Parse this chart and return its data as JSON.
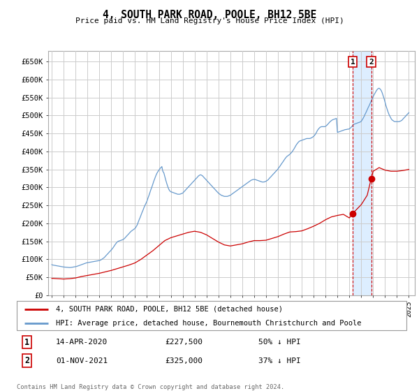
{
  "title": "4, SOUTH PARK ROAD, POOLE, BH12 5BE",
  "subtitle": "Price paid vs. HM Land Registry's House Price Index (HPI)",
  "ylim": [
    0,
    680000
  ],
  "yticks": [
    0,
    50000,
    100000,
    150000,
    200000,
    250000,
    300000,
    350000,
    400000,
    450000,
    500000,
    550000,
    600000,
    650000
  ],
  "ytick_labels": [
    "£0",
    "£50K",
    "£100K",
    "£150K",
    "£200K",
    "£250K",
    "£300K",
    "£350K",
    "£400K",
    "£450K",
    "£500K",
    "£550K",
    "£600K",
    "£650K"
  ],
  "xlim_start": 1994.7,
  "xlim_end": 2025.5,
  "red_line_label": "4, SOUTH PARK ROAD, POOLE, BH12 5BE (detached house)",
  "blue_line_label": "HPI: Average price, detached house, Bournemouth Christchurch and Poole",
  "transaction1": {
    "label": "1",
    "date": "14-APR-2020",
    "price": "£227,500",
    "hpi_rel": "50% ↓ HPI",
    "x": 2020.29
  },
  "transaction2": {
    "label": "2",
    "date": "01-NOV-2021",
    "price": "£325,000",
    "hpi_rel": "37% ↓ HPI",
    "x": 2021.84
  },
  "footer": "Contains HM Land Registry data © Crown copyright and database right 2024.\nThis data is licensed under the Open Government Licence v3.0.",
  "red_color": "#cc0000",
  "blue_color": "#6699cc",
  "grid_color": "#cccccc",
  "span_color": "#ddeeff",
  "dot_color": "#cc0000",
  "hpi_x": [
    1995.0,
    1995.08,
    1995.17,
    1995.25,
    1995.33,
    1995.42,
    1995.5,
    1995.58,
    1995.67,
    1995.75,
    1995.83,
    1995.92,
    1996.0,
    1996.08,
    1996.17,
    1996.25,
    1996.33,
    1996.42,
    1996.5,
    1996.58,
    1996.67,
    1996.75,
    1996.83,
    1996.92,
    1997.0,
    1997.08,
    1997.17,
    1997.25,
    1997.33,
    1997.42,
    1997.5,
    1997.58,
    1997.67,
    1997.75,
    1997.83,
    1997.92,
    1998.0,
    1998.08,
    1998.17,
    1998.25,
    1998.33,
    1998.42,
    1998.5,
    1998.58,
    1998.67,
    1998.75,
    1998.83,
    1998.92,
    1999.0,
    1999.08,
    1999.17,
    1999.25,
    1999.33,
    1999.42,
    1999.5,
    1999.58,
    1999.67,
    1999.75,
    1999.83,
    1999.92,
    2000.0,
    2000.08,
    2000.17,
    2000.25,
    2000.33,
    2000.42,
    2000.5,
    2000.58,
    2000.67,
    2000.75,
    2000.83,
    2000.92,
    2001.0,
    2001.08,
    2001.17,
    2001.25,
    2001.33,
    2001.42,
    2001.5,
    2001.58,
    2001.67,
    2001.75,
    2001.83,
    2001.92,
    2002.0,
    2002.08,
    2002.17,
    2002.25,
    2002.33,
    2002.42,
    2002.5,
    2002.58,
    2002.67,
    2002.75,
    2002.83,
    2002.92,
    2003.0,
    2003.08,
    2003.17,
    2003.25,
    2003.33,
    2003.42,
    2003.5,
    2003.58,
    2003.67,
    2003.75,
    2003.83,
    2003.92,
    2004.0,
    2004.08,
    2004.17,
    2004.25,
    2004.33,
    2004.42,
    2004.5,
    2004.58,
    2004.67,
    2004.75,
    2004.83,
    2004.92,
    2005.0,
    2005.08,
    2005.17,
    2005.25,
    2005.33,
    2005.42,
    2005.5,
    2005.58,
    2005.67,
    2005.75,
    2005.83,
    2005.92,
    2006.0,
    2006.08,
    2006.17,
    2006.25,
    2006.33,
    2006.42,
    2006.5,
    2006.58,
    2006.67,
    2006.75,
    2006.83,
    2006.92,
    2007.0,
    2007.08,
    2007.17,
    2007.25,
    2007.33,
    2007.42,
    2007.5,
    2007.58,
    2007.67,
    2007.75,
    2007.83,
    2007.92,
    2008.0,
    2008.08,
    2008.17,
    2008.25,
    2008.33,
    2008.42,
    2008.5,
    2008.58,
    2008.67,
    2008.75,
    2008.83,
    2008.92,
    2009.0,
    2009.08,
    2009.17,
    2009.25,
    2009.33,
    2009.42,
    2009.5,
    2009.58,
    2009.67,
    2009.75,
    2009.83,
    2009.92,
    2010.0,
    2010.08,
    2010.17,
    2010.25,
    2010.33,
    2010.42,
    2010.5,
    2010.58,
    2010.67,
    2010.75,
    2010.83,
    2010.92,
    2011.0,
    2011.08,
    2011.17,
    2011.25,
    2011.33,
    2011.42,
    2011.5,
    2011.58,
    2011.67,
    2011.75,
    2011.83,
    2011.92,
    2012.0,
    2012.08,
    2012.17,
    2012.25,
    2012.33,
    2012.42,
    2012.5,
    2012.58,
    2012.67,
    2012.75,
    2012.83,
    2012.92,
    2013.0,
    2013.08,
    2013.17,
    2013.25,
    2013.33,
    2013.42,
    2013.5,
    2013.58,
    2013.67,
    2013.75,
    2013.83,
    2013.92,
    2014.0,
    2014.08,
    2014.17,
    2014.25,
    2014.33,
    2014.42,
    2014.5,
    2014.58,
    2014.67,
    2014.75,
    2014.83,
    2014.92,
    2015.0,
    2015.08,
    2015.17,
    2015.25,
    2015.33,
    2015.42,
    2015.5,
    2015.58,
    2015.67,
    2015.75,
    2015.83,
    2015.92,
    2016.0,
    2016.08,
    2016.17,
    2016.25,
    2016.33,
    2016.42,
    2016.5,
    2016.58,
    2016.67,
    2016.75,
    2016.83,
    2016.92,
    2017.0,
    2017.08,
    2017.17,
    2017.25,
    2017.33,
    2017.42,
    2017.5,
    2017.58,
    2017.67,
    2017.75,
    2017.83,
    2017.92,
    2018.0,
    2018.08,
    2018.17,
    2018.25,
    2018.33,
    2018.42,
    2018.5,
    2018.58,
    2018.67,
    2018.75,
    2018.83,
    2018.92,
    2019.0,
    2019.08,
    2019.17,
    2019.25,
    2019.33,
    2019.42,
    2019.5,
    2019.58,
    2019.67,
    2019.75,
    2019.83,
    2019.92,
    2020.0,
    2020.08,
    2020.17,
    2020.25,
    2020.33,
    2020.42,
    2020.5,
    2020.58,
    2020.67,
    2020.75,
    2020.83,
    2020.92,
    2021.0,
    2021.08,
    2021.17,
    2021.25,
    2021.33,
    2021.42,
    2021.5,
    2021.58,
    2021.67,
    2021.75,
    2021.83,
    2021.92,
    2022.0,
    2022.08,
    2022.17,
    2022.25,
    2022.33,
    2022.42,
    2022.5,
    2022.58,
    2022.67,
    2022.75,
    2022.83,
    2022.92,
    2023.0,
    2023.08,
    2023.17,
    2023.25,
    2023.33,
    2023.42,
    2023.5,
    2023.58,
    2023.67,
    2023.75,
    2023.83,
    2023.92,
    2024.0,
    2024.08,
    2024.17,
    2024.25,
    2024.33,
    2024.42,
    2024.5,
    2024.58,
    2024.67,
    2024.75,
    2024.83,
    2024.92,
    2025.0
  ],
  "hpi_y": [
    85000,
    84000,
    83500,
    83000,
    82500,
    82000,
    81500,
    81000,
    80500,
    80000,
    79500,
    79000,
    78500,
    78200,
    78000,
    77800,
    77500,
    77200,
    77000,
    77200,
    77500,
    78000,
    78500,
    79000,
    79500,
    80000,
    81000,
    82000,
    83000,
    84000,
    85000,
    86000,
    87000,
    88000,
    89000,
    90000,
    90500,
    91000,
    91500,
    92000,
    92500,
    93000,
    93500,
    94000,
    94500,
    95000,
    95500,
    96000,
    96500,
    97500,
    99000,
    101000,
    103000,
    105000,
    108000,
    111000,
    114000,
    117000,
    120000,
    123000,
    126000,
    129000,
    133000,
    137000,
    141000,
    145000,
    148000,
    150000,
    151000,
    152000,
    153000,
    154000,
    155000,
    157000,
    160000,
    163000,
    166000,
    169000,
    172000,
    175000,
    178000,
    180000,
    182000,
    184000,
    186000,
    190000,
    195000,
    202000,
    209000,
    216000,
    223000,
    230000,
    237000,
    244000,
    250000,
    256000,
    262000,
    270000,
    278000,
    286000,
    294000,
    302000,
    310000,
    318000,
    326000,
    333000,
    339000,
    344000,
    348000,
    352000,
    355000,
    358000,
    345000,
    340000,
    330000,
    320000,
    310000,
    302000,
    295000,
    290000,
    288000,
    287000,
    286000,
    285000,
    284000,
    283000,
    282000,
    281000,
    281000,
    281000,
    282000,
    283000,
    284000,
    287000,
    290000,
    293000,
    296000,
    299000,
    302000,
    305000,
    308000,
    311000,
    314000,
    317000,
    320000,
    323000,
    326000,
    329000,
    332000,
    334000,
    335000,
    334000,
    332000,
    329000,
    326000,
    323000,
    320000,
    317000,
    314000,
    311000,
    308000,
    305000,
    302000,
    299000,
    296000,
    293000,
    290000,
    287000,
    284000,
    282000,
    280000,
    278000,
    277000,
    276000,
    275000,
    275000,
    275000,
    275000,
    276000,
    277000,
    278000,
    280000,
    282000,
    284000,
    286000,
    288000,
    290000,
    292000,
    294000,
    296000,
    298000,
    300000,
    302000,
    304000,
    306000,
    308000,
    310000,
    312000,
    314000,
    316000,
    318000,
    320000,
    321000,
    322000,
    322000,
    322000,
    321000,
    320000,
    319000,
    318000,
    317000,
    316000,
    315000,
    315000,
    315000,
    316000,
    317000,
    319000,
    321000,
    324000,
    327000,
    330000,
    333000,
    336000,
    339000,
    342000,
    345000,
    348000,
    351000,
    355000,
    359000,
    363000,
    367000,
    371000,
    375000,
    379000,
    383000,
    386000,
    388000,
    390000,
    392000,
    395000,
    398000,
    402000,
    406000,
    411000,
    416000,
    420000,
    424000,
    427000,
    429000,
    430000,
    431000,
    432000,
    433000,
    434000,
    435000,
    436000,
    436000,
    436000,
    436000,
    437000,
    438000,
    440000,
    442000,
    445000,
    449000,
    454000,
    459000,
    463000,
    466000,
    468000,
    469000,
    469000,
    469000,
    469000,
    470000,
    472000,
    475000,
    478000,
    481000,
    484000,
    486000,
    488000,
    489000,
    490000,
    491000,
    492000,
    453000,
    454000,
    455000,
    456000,
    457000,
    458000,
    459000,
    460000,
    461000,
    461000,
    462000,
    462000,
    463000,
    465000,
    468000,
    471000,
    474000,
    476000,
    477000,
    478000,
    479000,
    480000,
    481000,
    482000,
    484000,
    488000,
    493000,
    498000,
    504000,
    510000,
    516000,
    522000,
    528000,
    534000,
    540000,
    546000,
    552000,
    558000,
    563000,
    568000,
    572000,
    575000,
    576000,
    574000,
    570000,
    564000,
    556000,
    547000,
    537000,
    527000,
    518000,
    510000,
    503000,
    497000,
    492000,
    488000,
    486000,
    484000,
    483000,
    483000,
    483000,
    483000,
    483000,
    484000,
    485000,
    487000,
    490000,
    493000,
    496000,
    499000,
    502000,
    505000,
    508000
  ],
  "red_x": [
    1995.0,
    1995.5,
    1996.0,
    1996.5,
    1997.0,
    1997.5,
    1998.0,
    1998.5,
    1999.0,
    1999.5,
    2000.0,
    2000.5,
    2001.0,
    2001.5,
    2002.0,
    2002.5,
    2003.0,
    2003.5,
    2004.0,
    2004.5,
    2005.0,
    2005.5,
    2006.0,
    2006.5,
    2007.0,
    2007.5,
    2008.0,
    2008.5,
    2009.0,
    2009.5,
    2010.0,
    2010.5,
    2011.0,
    2011.5,
    2012.0,
    2012.5,
    2013.0,
    2013.5,
    2014.0,
    2014.5,
    2015.0,
    2015.5,
    2016.0,
    2016.5,
    2017.0,
    2017.5,
    2018.0,
    2018.5,
    2019.0,
    2019.5,
    2020.0,
    2020.29,
    2020.5,
    2021.0,
    2021.5,
    2021.84,
    2022.0,
    2022.5,
    2023.0,
    2023.5,
    2024.0,
    2024.5,
    2025.0
  ],
  "red_y": [
    47000,
    46000,
    45000,
    46000,
    48000,
    52000,
    55000,
    58000,
    61000,
    65000,
    69000,
    74000,
    79000,
    84000,
    90000,
    100000,
    112000,
    124000,
    138000,
    152000,
    160000,
    165000,
    170000,
    175000,
    178000,
    175000,
    168000,
    158000,
    148000,
    140000,
    137000,
    140000,
    143000,
    148000,
    152000,
    152000,
    153000,
    158000,
    163000,
    170000,
    176000,
    177000,
    179000,
    185000,
    192000,
    200000,
    210000,
    218000,
    222000,
    225000,
    215000,
    227500,
    235000,
    252000,
    278000,
    325000,
    345000,
    355000,
    348000,
    345000,
    345000,
    347000,
    350000
  ]
}
